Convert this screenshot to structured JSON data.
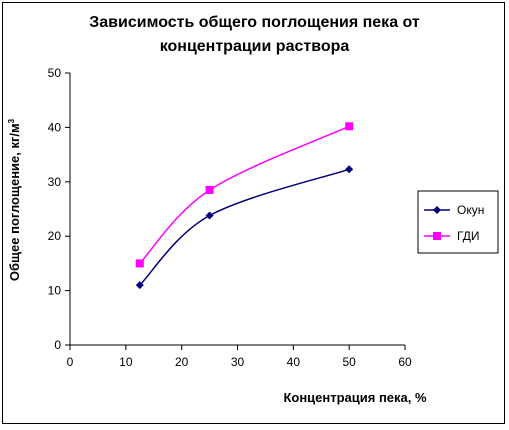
{
  "chart_data": {
    "type": "line",
    "title_lines": [
      "Зависимость общего поглощения пека от",
      "концентрации раствора"
    ],
    "xlabel": "Концентрация пека, %",
    "ylabel": "Общее поглощение, кг/м",
    "ylabel_sup": "3",
    "xlim": [
      0,
      60
    ],
    "ylim": [
      0,
      50
    ],
    "xticks": [
      0,
      10,
      20,
      30,
      40,
      50,
      60
    ],
    "yticks": [
      0,
      10,
      20,
      30,
      40,
      50
    ],
    "grid": false,
    "legend_position": "right",
    "series": [
      {
        "name": "Окун",
        "x": [
          12.5,
          25,
          50
        ],
        "y": [
          11,
          23.8,
          32.3
        ],
        "color": "#000080",
        "marker": "diamond"
      },
      {
        "name": "ГДИ",
        "x": [
          12.5,
          25,
          50
        ],
        "y": [
          15,
          28.5,
          40.2
        ],
        "color": "#ff00ff",
        "marker": "square"
      }
    ]
  }
}
